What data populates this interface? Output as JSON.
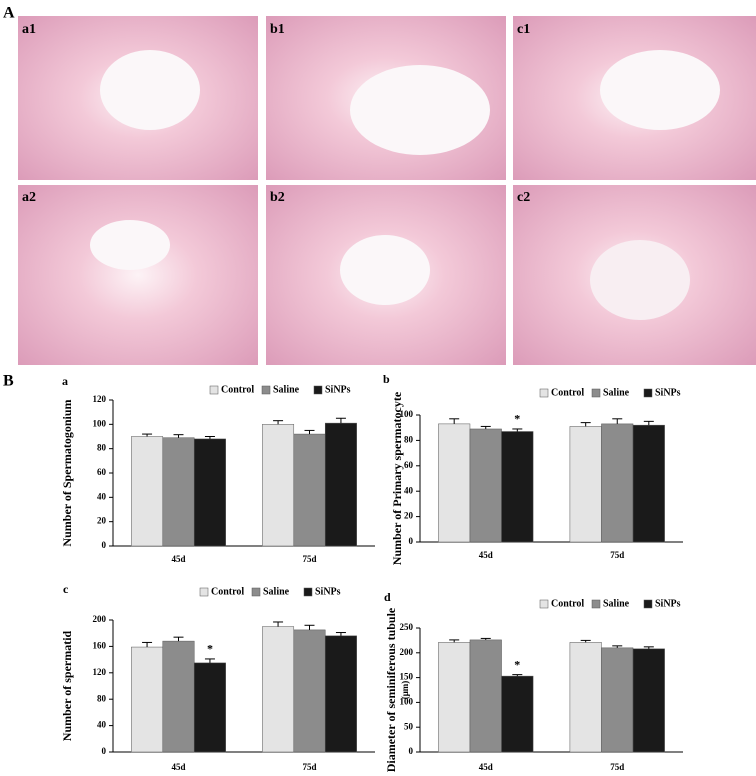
{
  "panel_A": "A",
  "panel_B": "B",
  "image_labels": [
    "a1",
    "b1",
    "c1",
    "a2",
    "b2",
    "c2"
  ],
  "chart_data": [
    {
      "type": "bar",
      "title": "a",
      "ylabel": "Number of Spermatogonium",
      "categories": [
        "45d",
        "75d"
      ],
      "ylim": [
        0,
        120
      ],
      "yticks": [
        0,
        20,
        40,
        60,
        80,
        100,
        120
      ],
      "series": [
        {
          "name": "Control",
          "color": "#e4e4e4",
          "values": [
            90,
            100
          ],
          "errors": [
            2,
            3
          ]
        },
        {
          "name": "Saline",
          "color": "#8c8c8c",
          "values": [
            89,
            92
          ],
          "errors": [
            2.5,
            3
          ]
        },
        {
          "name": "SiNPs",
          "color": "#1a1a1a",
          "values": [
            88,
            101
          ],
          "errors": [
            2,
            4
          ]
        }
      ]
    },
    {
      "type": "bar",
      "title": "b",
      "ylabel": "Number of Primary spermatocyte",
      "categories": [
        "45d",
        "75d"
      ],
      "ylim": [
        0,
        100
      ],
      "yticks": [
        0,
        20,
        40,
        60,
        80,
        100
      ],
      "series": [
        {
          "name": "Control",
          "color": "#e4e4e4",
          "values": [
            93,
            91
          ],
          "errors": [
            4,
            3
          ]
        },
        {
          "name": "Saline",
          "color": "#8c8c8c",
          "values": [
            89,
            93
          ],
          "errors": [
            2,
            4
          ]
        },
        {
          "name": "SiNPs",
          "color": "#1a1a1a",
          "values": [
            87,
            92
          ],
          "errors": [
            2,
            3
          ],
          "markers": [
            "*",
            null
          ]
        }
      ]
    },
    {
      "type": "bar",
      "title": "c",
      "ylabel": "Number of spermatid",
      "categories": [
        "45d",
        "75d"
      ],
      "ylim": [
        0,
        200
      ],
      "yticks": [
        0,
        40,
        80,
        120,
        160,
        200
      ],
      "series": [
        {
          "name": "Control",
          "color": "#e4e4e4",
          "values": [
            159,
            190
          ],
          "errors": [
            7,
            7
          ]
        },
        {
          "name": "Saline",
          "color": "#8c8c8c",
          "values": [
            168,
            185
          ],
          "errors": [
            6,
            7
          ]
        },
        {
          "name": "SiNPs",
          "color": "#1a1a1a",
          "values": [
            135,
            176
          ],
          "errors": [
            6,
            5
          ],
          "markers": [
            "*",
            null
          ]
        }
      ]
    },
    {
      "type": "bar",
      "title": "d",
      "ylabel": "Diameter of seminiferous tubule",
      "ylabel_unit": "(μm)",
      "categories": [
        "45d",
        "75d"
      ],
      "ylim": [
        0,
        250
      ],
      "yticks": [
        0,
        50,
        100,
        150,
        200,
        250
      ],
      "series": [
        {
          "name": "Control",
          "color": "#e4e4e4",
          "values": [
            221,
            221
          ],
          "errors": [
            5,
            4
          ]
        },
        {
          "name": "Saline",
          "color": "#8c8c8c",
          "values": [
            226,
            210
          ],
          "errors": [
            3,
            4
          ]
        },
        {
          "name": "SiNPs",
          "color": "#1a1a1a",
          "values": [
            153,
            208
          ],
          "errors": [
            3,
            4
          ],
          "markers": [
            "*",
            null
          ]
        }
      ]
    }
  ]
}
